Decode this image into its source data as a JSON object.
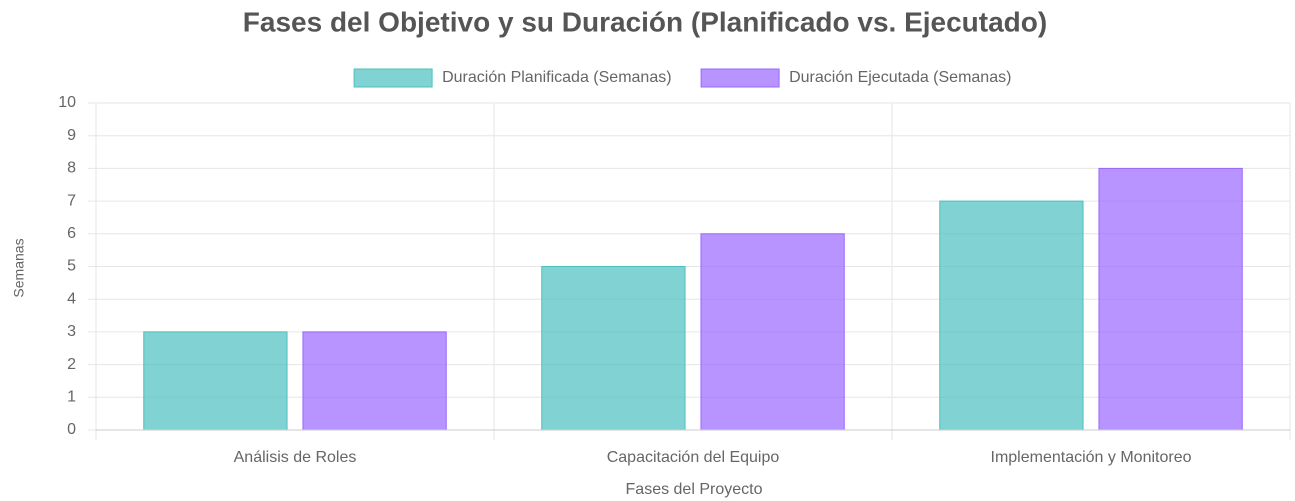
{
  "chart_data": {
    "type": "bar",
    "title": "Fases del Objetivo y su Duración (Planificado vs. Ejecutado)",
    "x_label": "Fases del Proyecto",
    "y_label": "Semanas",
    "categories": [
      "Análisis de Roles",
      "Capacitación del Equipo",
      "Implementación y Monitoreo"
    ],
    "series": [
      {
        "name": "Duración Planificada (Semanas)",
        "color": "rgba(75,192,192,0.7)",
        "border": "rgb(75,192,192)",
        "values": [
          3,
          5,
          7
        ]
      },
      {
        "name": "Duración Ejecutada (Semanas)",
        "color": "rgba(153,102,255,0.7)",
        "border": "rgb(153,102,255)",
        "values": [
          3,
          6,
          8
        ]
      }
    ],
    "ylim": [
      0,
      10
    ],
    "yticks": [
      0,
      1,
      2,
      3,
      4,
      5,
      6,
      7,
      8,
      9,
      10
    ],
    "grid": true,
    "legend": "top"
  }
}
